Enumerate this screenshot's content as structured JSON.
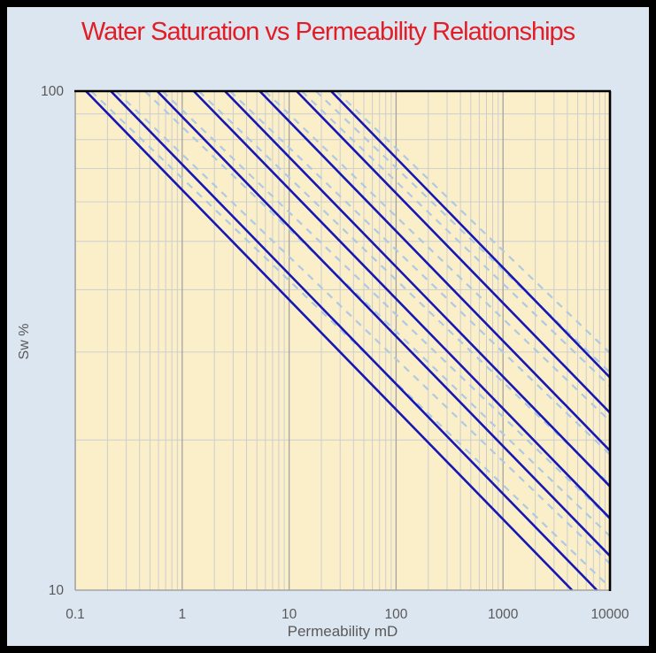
{
  "page": {
    "background": "#dce6f1",
    "border_color": "#000000"
  },
  "chart_data": {
    "type": "line",
    "title": "Water Saturation vs Permeability Relationships",
    "title_color": "#e21d25",
    "xlabel": "Permeability mD",
    "ylabel": "Sw %",
    "x_scale": "log",
    "y_scale": "log",
    "xlim": [
      0.1,
      10000
    ],
    "ylim": [
      10,
      100
    ],
    "x_ticks": [
      0.1,
      1,
      10,
      100,
      1000,
      10000
    ],
    "x_tick_labels": [
      "0.1",
      "1",
      "10",
      "100",
      "1000",
      "10000"
    ],
    "y_ticks": [
      100,
      10
    ],
    "y_tick_labels": [
      "100",
      "10"
    ],
    "grid": {
      "minor_color": "#cdcdcd",
      "major_color": "#a3a3a3",
      "minor_on": true,
      "major_on": true
    },
    "plot_background": "#fbefca",
    "axis_text_color": "#595959",
    "legend": "none",
    "series_model": "Sw = 100 * (K / K100)^(-b), straight lines on log-log axes",
    "series": [
      {
        "name": "solid-line-1",
        "style": "solid",
        "color": "#1717b4",
        "K100": 0.126,
        "b": 0.22
      },
      {
        "name": "solid-line-2",
        "style": "solid",
        "color": "#1717b4",
        "K100": 0.215,
        "b": 0.22
      },
      {
        "name": "solid-line-3",
        "style": "solid",
        "color": "#1717b4",
        "K100": 0.584,
        "b": 0.22
      },
      {
        "name": "solid-line-4",
        "style": "solid",
        "color": "#1717b4",
        "K100": 1.284,
        "b": 0.22
      },
      {
        "name": "solid-line-5",
        "style": "solid",
        "color": "#1717b4",
        "K100": 2.512,
        "b": 0.22
      },
      {
        "name": "solid-line-6",
        "style": "solid",
        "color": "#1717b4",
        "K100": 5.31,
        "b": 0.22
      },
      {
        "name": "solid-line-7",
        "style": "solid",
        "color": "#1717b4",
        "K100": 11.75,
        "b": 0.22
      },
      {
        "name": "solid-line-8",
        "style": "solid",
        "color": "#1717b4",
        "K100": 24.66,
        "b": 0.22
      },
      {
        "name": "dashed-line-1",
        "style": "dashed",
        "color": "#afc9e2",
        "K100": 0.141,
        "b": 0.205
      },
      {
        "name": "dashed-line-2",
        "style": "dashed",
        "color": "#afc9e2",
        "K100": 0.241,
        "b": 0.205
      },
      {
        "name": "dashed-line-3",
        "style": "dashed",
        "color": "#afc9e2",
        "K100": 0.447,
        "b": 0.205
      },
      {
        "name": "dashed-line-4",
        "style": "dashed",
        "color": "#afc9e2",
        "K100": 0.655,
        "b": 0.205
      },
      {
        "name": "dashed-line-5",
        "style": "dashed",
        "color": "#afc9e2",
        "K100": 1.43,
        "b": 0.205
      },
      {
        "name": "dashed-line-6",
        "style": "dashed",
        "color": "#afc9e2",
        "K100": 2.81,
        "b": 0.205
      },
      {
        "name": "dashed-line-7",
        "style": "dashed",
        "color": "#afc9e2",
        "K100": 5.95,
        "b": 0.205
      },
      {
        "name": "dashed-line-8",
        "style": "dashed",
        "color": "#afc9e2",
        "K100": 13.1,
        "b": 0.205
      },
      {
        "name": "dashed-line-9",
        "style": "dashed",
        "color": "#afc9e2",
        "K100": 17.8,
        "b": 0.205
      },
      {
        "name": "dashed-line-10",
        "style": "dashed",
        "color": "#afc9e2",
        "K100": 27.6,
        "b": 0.205
      }
    ]
  }
}
